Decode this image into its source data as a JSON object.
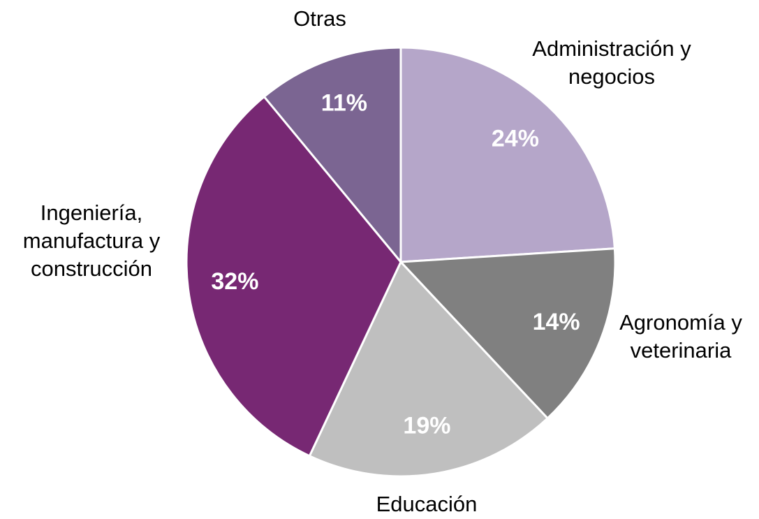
{
  "chart_data": {
    "type": "pie",
    "categories": [
      "Administración y negocios",
      "Agronomía y veterinaria",
      "Educación",
      "Ingeniería, manufactura y construcción",
      "Otras"
    ],
    "values": [
      24,
      14,
      19,
      32,
      11
    ],
    "value_labels": [
      "24%",
      "14%",
      "19%",
      "32%",
      "11%"
    ],
    "colors": [
      "#b5a6c9",
      "#808080",
      "#bfbfbf",
      "#772873",
      "#7b6592"
    ]
  }
}
